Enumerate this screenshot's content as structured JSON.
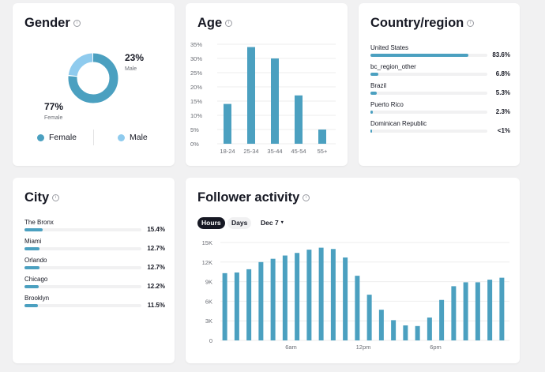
{
  "colors": {
    "primary": "#4ba0c0",
    "secondary": "#8fcbee",
    "grid": "#eeeeee",
    "axis_text": "#6b6e75"
  },
  "gender": {
    "title": "Gender",
    "female_pct": "77%",
    "female_label": "Female",
    "male_pct": "23%",
    "male_label": "Male",
    "legend": [
      "Female",
      "Male"
    ]
  },
  "age": {
    "title": "Age"
  },
  "country": {
    "title": "Country/region",
    "items": [
      {
        "label": "United States",
        "pct": "83.6%",
        "value": 83.6
      },
      {
        "label": "bc_region_other",
        "pct": "6.8%",
        "value": 6.8
      },
      {
        "label": "Brazil",
        "pct": "5.3%",
        "value": 5.3
      },
      {
        "label": "Puerto Rico",
        "pct": "2.3%",
        "value": 2.3
      },
      {
        "label": "Dominican Republic",
        "pct": "<1%",
        "value": 0.6
      }
    ]
  },
  "city": {
    "title": "City",
    "items": [
      {
        "label": "The Bronx",
        "pct": "15.4%",
        "value": 15.4
      },
      {
        "label": "Miami",
        "pct": "12.7%",
        "value": 12.7
      },
      {
        "label": "Orlando",
        "pct": "12.7%",
        "value": 12.7
      },
      {
        "label": "Chicago",
        "pct": "12.2%",
        "value": 12.2
      },
      {
        "label": "Brooklyn",
        "pct": "11.5%",
        "value": 11.5
      }
    ]
  },
  "activity": {
    "title": "Follower activity",
    "tabs": [
      "Hours",
      "Days"
    ],
    "active_tab": "Hours",
    "date_label": "Dec 7",
    "caret": "▾"
  },
  "chart_data": [
    {
      "type": "pie",
      "categories": [
        "Female",
        "Male"
      ],
      "values": [
        77,
        23
      ]
    },
    {
      "type": "bar",
      "categories": [
        "18-24",
        "25-34",
        "35-44",
        "45-54",
        "55+"
      ],
      "values": [
        14,
        34,
        30,
        17,
        5
      ],
      "yticks": [
        "0%",
        "5%",
        "10%",
        "15%",
        "20%",
        "25%",
        "30%",
        "35%"
      ],
      "ylim": [
        0,
        35
      ]
    },
    {
      "type": "bar",
      "x": [
        0,
        1,
        2,
        3,
        4,
        5,
        6,
        7,
        8,
        9,
        10,
        11,
        12,
        13,
        14,
        15,
        16,
        17,
        18,
        19,
        20,
        21,
        22,
        23
      ],
      "values": [
        10300,
        10400,
        10900,
        12000,
        12500,
        13000,
        13400,
        13900,
        14200,
        14000,
        12700,
        9900,
        7000,
        4700,
        3100,
        2300,
        2200,
        3500,
        6200,
        8300,
        8900,
        8900,
        9300,
        9600
      ],
      "xticks": [
        {
          "at": 6,
          "label": "6am"
        },
        {
          "at": 12,
          "label": "12pm"
        },
        {
          "at": 18,
          "label": "6pm"
        }
      ],
      "yticks": [
        "0",
        "3K",
        "6K",
        "9K",
        "12K",
        "15K"
      ],
      "ylim": [
        0,
        15000
      ]
    }
  ]
}
